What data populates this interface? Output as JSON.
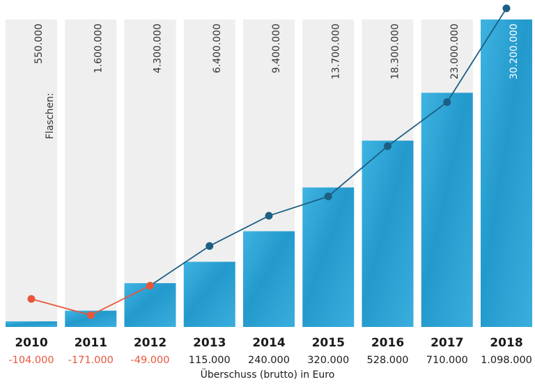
{
  "chart_data": {
    "type": "bar",
    "categories": [
      "2010",
      "2011",
      "2012",
      "2013",
      "2014",
      "2015",
      "2016",
      "2017",
      "2018"
    ],
    "series": [
      {
        "name": "Flaschen:",
        "values": [
          550000,
          1600000,
          4300000,
          6400000,
          9400000,
          13700000,
          18300000,
          23000000,
          30200000
        ]
      },
      {
        "name": "Überschuss (brutto) in Euro",
        "values": [
          -104000,
          -171000,
          -49000,
          115000,
          240000,
          320000,
          528000,
          710000,
          1098000
        ]
      }
    ],
    "bottle_labels": [
      "550.000",
      "1.600.000",
      "4.300.000",
      "6.400.000",
      "9.400.000",
      "13.700.000",
      "18.300.000",
      "23.000.000",
      "30.200.000"
    ],
    "bottles_prefix": "Flaschen:",
    "surplus_labels": [
      "-104.000",
      "-171.000",
      "-49.000",
      "115.000",
      "240.000",
      "320.000",
      "528.000",
      "710.000",
      "1.098.000"
    ],
    "xlabel": "Überschuss (brutto) in Euro",
    "bottles_range": [
      0,
      30200000
    ],
    "surplus_range": [
      -171000,
      1098000
    ],
    "colors": {
      "column_background": "#efefef",
      "bar": "#2fa3d4",
      "bar_dark": "#1a88bb",
      "line_positive": "#1c5f83",
      "line_negative": "#e8563a",
      "label_negative": "#e8563a",
      "label_positive": "#1a1a1a"
    }
  }
}
